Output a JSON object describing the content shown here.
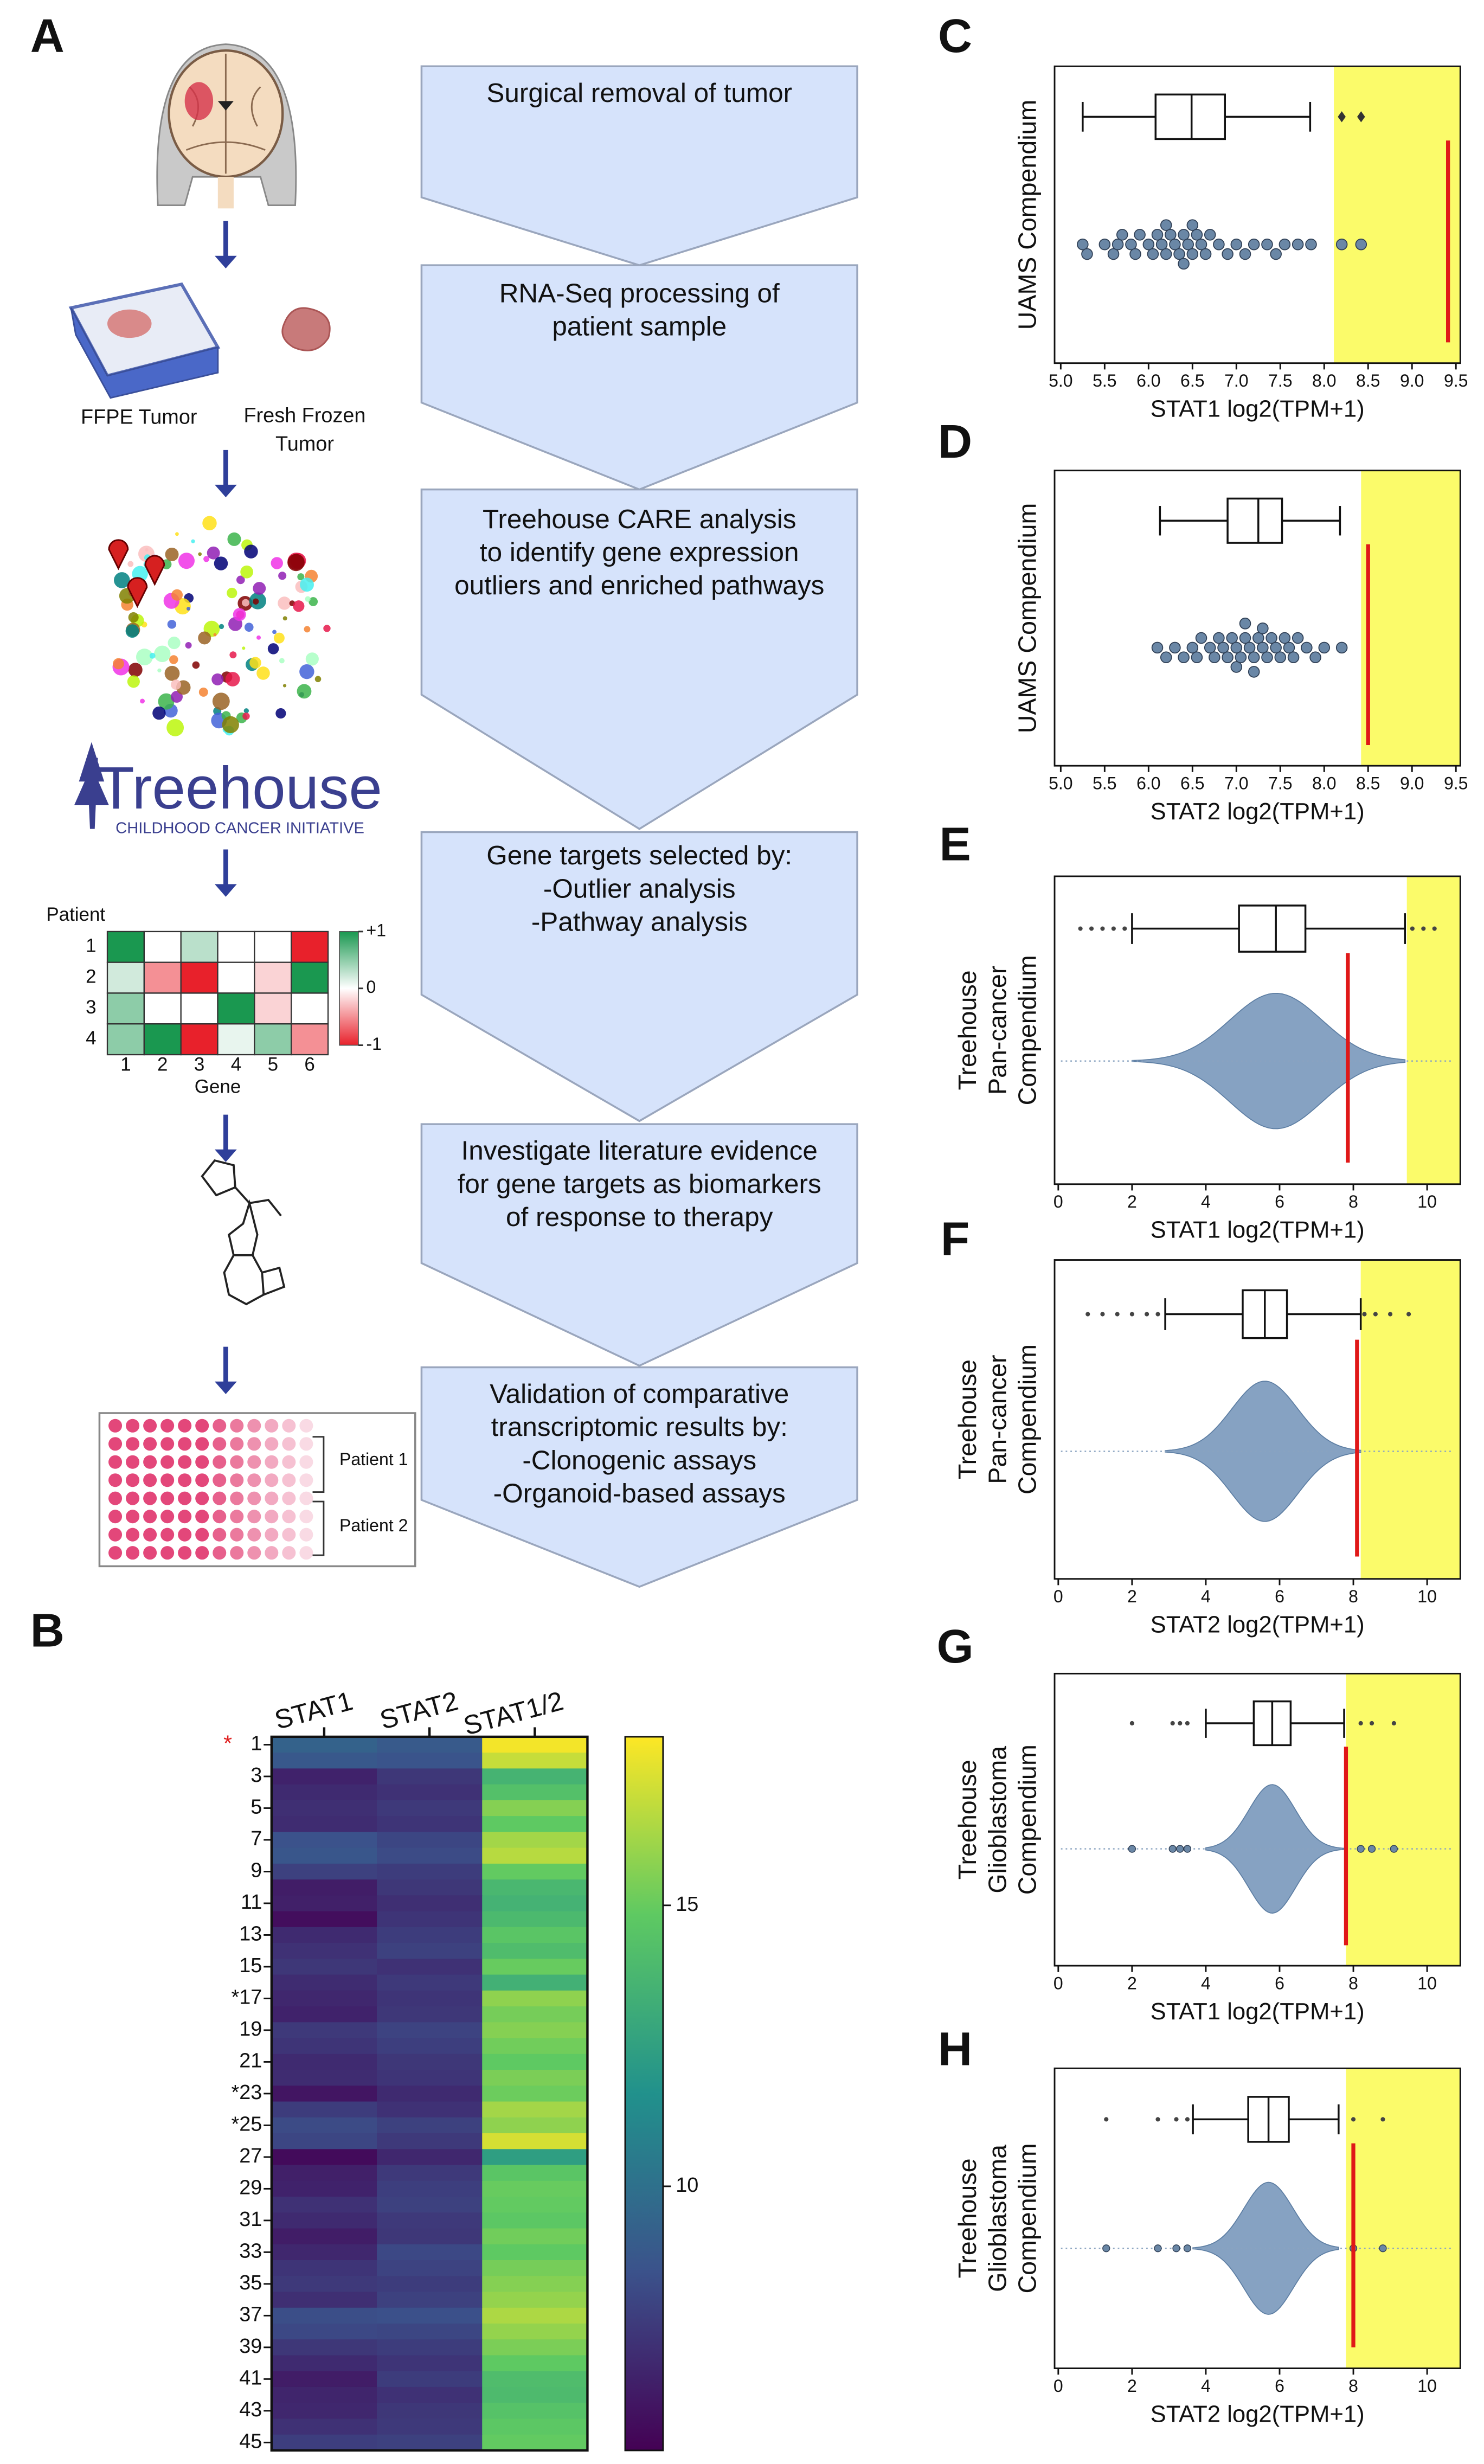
{
  "panel_labels": [
    "A",
    "B",
    "C",
    "D",
    "E",
    "F",
    "G",
    "H"
  ],
  "flowchart": {
    "steps": [
      [
        "Surgical removal of tumor"
      ],
      [
        "RNA-Seq processing of",
        "patient sample"
      ],
      [
        "Treehouse CARE analysis",
        "to identify gene expression",
        "outliers and enriched pathways"
      ],
      [
        "Gene targets selected by:",
        "-Outlier analysis",
        "-Pathway analysis"
      ],
      [
        "Investigate literature evidence",
        "for gene targets as biomarkers",
        "of response to therapy"
      ],
      [
        "Validation of comparative",
        "transcriptomic results by:",
        "-Clonogenic assays",
        "-Organoid-based assays"
      ]
    ]
  },
  "workflow_labels": {
    "ffpe": "FFPE Tumor",
    "fresh_frozen": [
      "Fresh Frozen",
      "Tumor"
    ],
    "logo_title": "Treehouse",
    "logo_subtitle": "CHILDHOOD CANCER INITIATIVE",
    "plate": [
      "Patient 1",
      "Patient 2"
    ]
  },
  "example_heatmap": {
    "row_title": "Patient",
    "col_title": "Gene",
    "rows": [
      "1",
      "2",
      "3",
      "4"
    ],
    "cols": [
      "1",
      "2",
      "3",
      "4",
      "5",
      "6"
    ],
    "values": [
      [
        1,
        0,
        0.3,
        0,
        0,
        -1
      ],
      [
        0.2,
        -0.5,
        -1,
        0,
        -0.2,
        1
      ],
      [
        0.5,
        0,
        0,
        1,
        -0.2,
        0
      ],
      [
        0.5,
        1,
        -1,
        0.1,
        0.5,
        -0.5
      ]
    ],
    "clim": [
      -1,
      1
    ],
    "cticks": [
      {
        "value": 1,
        "label": "+1"
      },
      0,
      -1
    ]
  },
  "expression_heatmap": {
    "columns": [
      "STAT1",
      "STAT2",
      "STAT1/2"
    ],
    "red_star": "*",
    "row_labels": [
      "1",
      null,
      "3",
      null,
      "5",
      null,
      "7",
      null,
      "9",
      null,
      "11",
      null,
      "13",
      null,
      "15",
      null,
      "*17",
      null,
      "19",
      null,
      "21",
      null,
      "*23",
      null,
      "*25",
      null,
      "27",
      null,
      "29",
      null,
      "31",
      null,
      "33",
      null,
      "35",
      null,
      "37",
      null,
      "39",
      null,
      "41",
      null,
      "43",
      null,
      "45"
    ],
    "values": [
      [
        9.3,
        8.9,
        17.8
      ],
      [
        8.8,
        8.6,
        16.9
      ],
      [
        6.6,
        7.4,
        13.6
      ],
      [
        6.9,
        7.2,
        14.3
      ],
      [
        7.1,
        7.5,
        15.6
      ],
      [
        7.0,
        7.3,
        14.8
      ],
      [
        8.5,
        8.0,
        16.2
      ],
      [
        8.7,
        8.2,
        16.6
      ],
      [
        7.8,
        7.6,
        14.9
      ],
      [
        6.4,
        7.4,
        13.8
      ],
      [
        6.5,
        7.1,
        13.5
      ],
      [
        5.8,
        7.3,
        13.9
      ],
      [
        6.9,
        7.6,
        14.6
      ],
      [
        7.2,
        7.8,
        14.1
      ],
      [
        7.4,
        7.2,
        15.0
      ],
      [
        7.0,
        7.5,
        13.4
      ],
      [
        6.8,
        7.3,
        15.8
      ],
      [
        6.6,
        7.4,
        15.3
      ],
      [
        7.5,
        7.9,
        15.6
      ],
      [
        7.3,
        7.7,
        15.2
      ],
      [
        6.9,
        7.4,
        14.8
      ],
      [
        7.0,
        7.3,
        15.4
      ],
      [
        6.1,
        6.9,
        15.1
      ],
      [
        7.6,
        7.2,
        16.2
      ],
      [
        8.2,
        7.8,
        15.8
      ],
      [
        8.0,
        7.5,
        17.2
      ],
      [
        5.7,
        6.8,
        12.4
      ],
      [
        6.5,
        7.5,
        14.6
      ],
      [
        6.6,
        7.7,
        15.0
      ],
      [
        7.2,
        7.8,
        14.9
      ],
      [
        6.9,
        7.5,
        14.7
      ],
      [
        6.4,
        7.4,
        15.2
      ],
      [
        6.8,
        8.1,
        14.8
      ],
      [
        7.3,
        7.9,
        15.3
      ],
      [
        7.5,
        7.6,
        15.6
      ],
      [
        7.1,
        7.8,
        15.9
      ],
      [
        8.3,
        8.4,
        16.4
      ],
      [
        8.1,
        8.0,
        15.9
      ],
      [
        7.4,
        7.6,
        15.4
      ],
      [
        6.9,
        7.3,
        14.8
      ],
      [
        6.4,
        7.6,
        14.1
      ],
      [
        6.7,
        7.2,
        14.0
      ],
      [
        6.8,
        7.4,
        14.4
      ],
      [
        7.2,
        7.5,
        14.7
      ],
      [
        7.7,
        7.8,
        14.9
      ]
    ],
    "clim": [
      5.3,
      18
    ],
    "cticks": [
      10,
      15
    ]
  },
  "plots": {
    "C": {
      "ylabel": [
        "UAMS Compendium"
      ],
      "xlabel": "STAT1 log2(TPM+1)",
      "xlim": [
        4.93,
        9.55
      ],
      "xticks": [
        {
          "value": 5,
          "label": "5.0"
        },
        5.5,
        {
          "value": 6,
          "label": "6.0"
        },
        6.5,
        {
          "value": 7,
          "label": "7.0"
        },
        7.5,
        {
          "value": 8,
          "label": "8.0"
        },
        8.5,
        {
          "value": 9,
          "label": "9.0"
        },
        9.5
      ],
      "box": {
        "min": 5.25,
        "q1": 6.08,
        "median": 6.49,
        "q3": 6.87,
        "max": 7.84
      },
      "outliers": [
        8.2,
        8.42
      ],
      "points": [
        5.25,
        5.3,
        5.5,
        5.6,
        5.65,
        5.7,
        5.8,
        5.85,
        5.9,
        6.0,
        6.05,
        6.1,
        6.15,
        6.2,
        6.2,
        6.25,
        6.3,
        6.35,
        6.4,
        6.4,
        6.45,
        6.5,
        6.5,
        6.55,
        6.6,
        6.65,
        6.7,
        6.8,
        6.9,
        7.0,
        7.1,
        7.2,
        7.35,
        7.45,
        7.55,
        7.7,
        7.85,
        8.2,
        8.42
      ],
      "outlier_threshold": 8.11,
      "patient_value": 9.41
    },
    "D": {
      "ylabel": [
        "UAMS Compendium"
      ],
      "xlabel": "STAT2 log2(TPM+1)",
      "xlim": [
        4.93,
        9.55
      ],
      "xticks": [
        {
          "value": 5,
          "label": "5.0"
        },
        5.5,
        {
          "value": 6,
          "label": "6.0"
        },
        6.5,
        {
          "value": 7,
          "label": "7.0"
        },
        7.5,
        {
          "value": 8,
          "label": "8.0"
        },
        8.5,
        {
          "value": 9,
          "label": "9.0"
        },
        9.5
      ],
      "box": {
        "min": 6.13,
        "q1": 6.9,
        "median": 7.25,
        "q3": 7.52,
        "max": 8.18
      },
      "outliers": [],
      "points": [
        6.1,
        6.2,
        6.3,
        6.4,
        6.5,
        6.55,
        6.6,
        6.7,
        6.75,
        6.8,
        6.85,
        6.9,
        6.95,
        7.0,
        7.0,
        7.05,
        7.1,
        7.1,
        7.15,
        7.2,
        7.2,
        7.25,
        7.3,
        7.3,
        7.35,
        7.4,
        7.45,
        7.5,
        7.55,
        7.6,
        7.65,
        7.7,
        7.8,
        7.9,
        8.0,
        8.2
      ],
      "outlier_threshold": 8.42,
      "patient_value": 8.5
    },
    "E": {
      "ylabel": [
        "Treehouse",
        "Pan-cancer",
        "Compendium"
      ],
      "xlabel": "STAT1 log2(TPM+1)",
      "xlim": [
        -0.1,
        10.9
      ],
      "xticks": [
        0,
        2,
        4,
        6,
        8,
        10
      ],
      "box": {
        "min": 2.0,
        "q1": 4.9,
        "median": 5.9,
        "q3": 6.7,
        "max": 9.4
      },
      "outliers": [
        0.6,
        0.9,
        1.2,
        1.5,
        1.8,
        9.6,
        9.9,
        10.2
      ],
      "outlier_threshold": 9.45,
      "patient_value": 7.85
    },
    "F": {
      "ylabel": [
        "Treehouse",
        "Pan-cancer",
        "Compendium"
      ],
      "xlabel": "STAT2 log2(TPM+1)",
      "xlim": [
        -0.1,
        10.9
      ],
      "xticks": [
        0,
        2,
        4,
        6,
        8,
        10
      ],
      "box": {
        "min": 2.9,
        "q1": 5.0,
        "median": 5.6,
        "q3": 6.2,
        "max": 8.2
      },
      "outliers": [
        0.8,
        1.2,
        1.6,
        2.0,
        2.4,
        2.7,
        8.3,
        8.6,
        9.0,
        9.5
      ],
      "outlier_threshold": 8.2,
      "patient_value": 8.1
    },
    "G": {
      "ylabel": [
        "Treehouse",
        "Glioblastoma",
        "Compendium"
      ],
      "xlabel": "STAT1 log2(TPM+1)",
      "xlim": [
        -0.1,
        10.9
      ],
      "xticks": [
        0,
        2,
        4,
        6,
        8,
        10
      ],
      "box": {
        "min": 4.0,
        "q1": 5.3,
        "median": 5.8,
        "q3": 6.3,
        "max": 7.75
      },
      "outliers": [
        2.0,
        3.1,
        3.3,
        3.5,
        8.2,
        8.5,
        9.1
      ],
      "outlier_threshold": 7.8,
      "patient_value": 7.8
    },
    "H": {
      "ylabel": [
        "Treehouse",
        "Glioblastoma",
        "Compendium"
      ],
      "xlabel": "STAT2 log2(TPM+1)",
      "xlim": [
        -0.1,
        10.9
      ],
      "xticks": [
        0,
        2,
        4,
        6,
        8,
        10
      ],
      "box": {
        "min": 3.65,
        "q1": 5.15,
        "median": 5.7,
        "q3": 6.25,
        "max": 7.6
      },
      "outliers": [
        1.3,
        2.7,
        3.2,
        3.5,
        8.0,
        8.8
      ],
      "outlier_threshold": 7.8,
      "patient_value": 8.0
    }
  }
}
